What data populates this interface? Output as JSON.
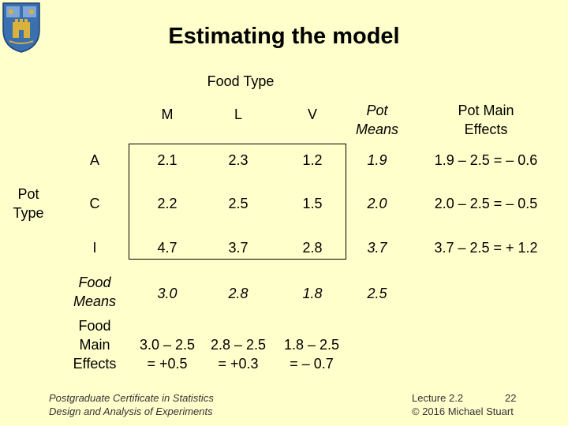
{
  "title": "Estimating the model",
  "col_group_label": "Food Type",
  "row_group_label": "Pot Type",
  "col_headers": [
    "M",
    "L",
    "V"
  ],
  "pot_means_header": "Pot Means",
  "pot_effects_header": "Pot Main Effects",
  "rows": [
    {
      "label": "A",
      "values": [
        "2.1",
        "2.3",
        "1.2"
      ],
      "mean": "1.9",
      "effect": "1.9 – 2.5 = – 0.6"
    },
    {
      "label": "C",
      "values": [
        "2.2",
        "2.5",
        "1.5"
      ],
      "mean": "2.0",
      "effect": "2.0 – 2.5 = – 0.5"
    },
    {
      "label": "I",
      "values": [
        "4.7",
        "3.7",
        "2.8"
      ],
      "mean": "3.7",
      "effect": "3.7 – 2.5 = + 1.2"
    }
  ],
  "food_means_label": "Food Means",
  "food_means": [
    "3.0",
    "2.8",
    "1.8"
  ],
  "grand_mean": "2.5",
  "food_effects_label": "Food Main Effects",
  "food_effects": [
    {
      "line1": "3.0 – 2.5",
      "line2": "= +0.5"
    },
    {
      "line1": "2.8 – 2.5",
      "line2": "= +0.3"
    },
    {
      "line1": "1.8 – 2.5",
      "line2": "= – 0.7"
    }
  ],
  "footer_left": {
    "line1": "Postgraduate Certificate in Statistics",
    "line2": "Design and Analysis of Experiments"
  },
  "footer_right": {
    "line1": "Lecture 2.2",
    "page": "22",
    "line2": "© 2016 Michael Stuart"
  },
  "colors": {
    "background": "#ffffcc",
    "crest_blue": "#3a6fb0",
    "crest_gold": "#d8b23a"
  }
}
